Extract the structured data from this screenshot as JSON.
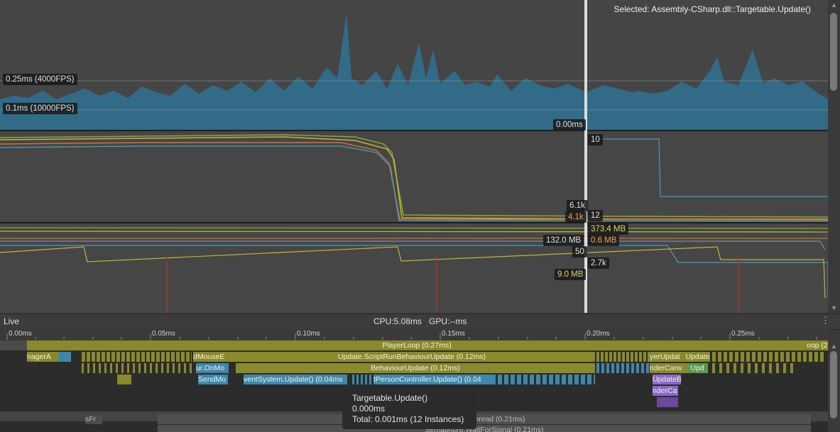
{
  "selected_text": "Selected: Assembly-CSharp.dll::Targetable.Update()",
  "chart_labels": {
    "fps_025": "0.25ms (4000FPS)",
    "fps_01": "0.1ms (10000FPS)",
    "cpu_value": "0.00ms",
    "render_a": "10",
    "render_b": "6.1k",
    "render_c": "4.1k",
    "render_d": "12",
    "mem_a": "373.4 MB",
    "mem_b": "132.0 MB",
    "mem_c": "0.6 MB",
    "mem_d": "50",
    "mem_e": "2.7k",
    "mem_f": "9.0 MB"
  },
  "status": {
    "live": "Live",
    "cpu_gpu": "CPU:5.08ms   GPU:--ms",
    "menu": "⋮"
  },
  "ruler": [
    "0.00ms",
    "0.05ms",
    "0.10ms",
    "0.15ms",
    "0.20ms",
    "0.25ms"
  ],
  "bars": {
    "playerloop": "PlayerLoop (0.27ms)",
    "playerloop_tail": "oop (2",
    "manager": "nagerA",
    "mouse": "dMouseE",
    "script_run": "Update.ScriptRunBehaviourUpdate (0.12ms)",
    "player_update": "yerUpdat",
    "update_small": "Update",
    "ur_onmo": "ur.OnMo",
    "behaviour": "BehaviourUpdate (0.12ms)",
    "render_canvas": "nderCanv",
    "upd": "Upd",
    "sendmo": "SendMo",
    "eventsystem": "ventSystem.Update() (0.04ms",
    "person": "tPersonController.Update() (0.04",
    "updateb": "UpdateB",
    "nderca": "nderCa",
    "mainthread": "omMainThread (0.21ms)",
    "semaphore": "Semaphore.WaitForSignal (0.21ms)",
    "sfr": "sFr"
  },
  "tooltip": {
    "name": "Targetable.Update()",
    "time": "0.000ms",
    "total": "Total: 0.001ms (12 Instances)"
  },
  "colors": {
    "cpu_area": "#2f6f8e",
    "olive": "#8a8a2a",
    "blue": "#3f87a9",
    "purple": "#8b68c5"
  }
}
